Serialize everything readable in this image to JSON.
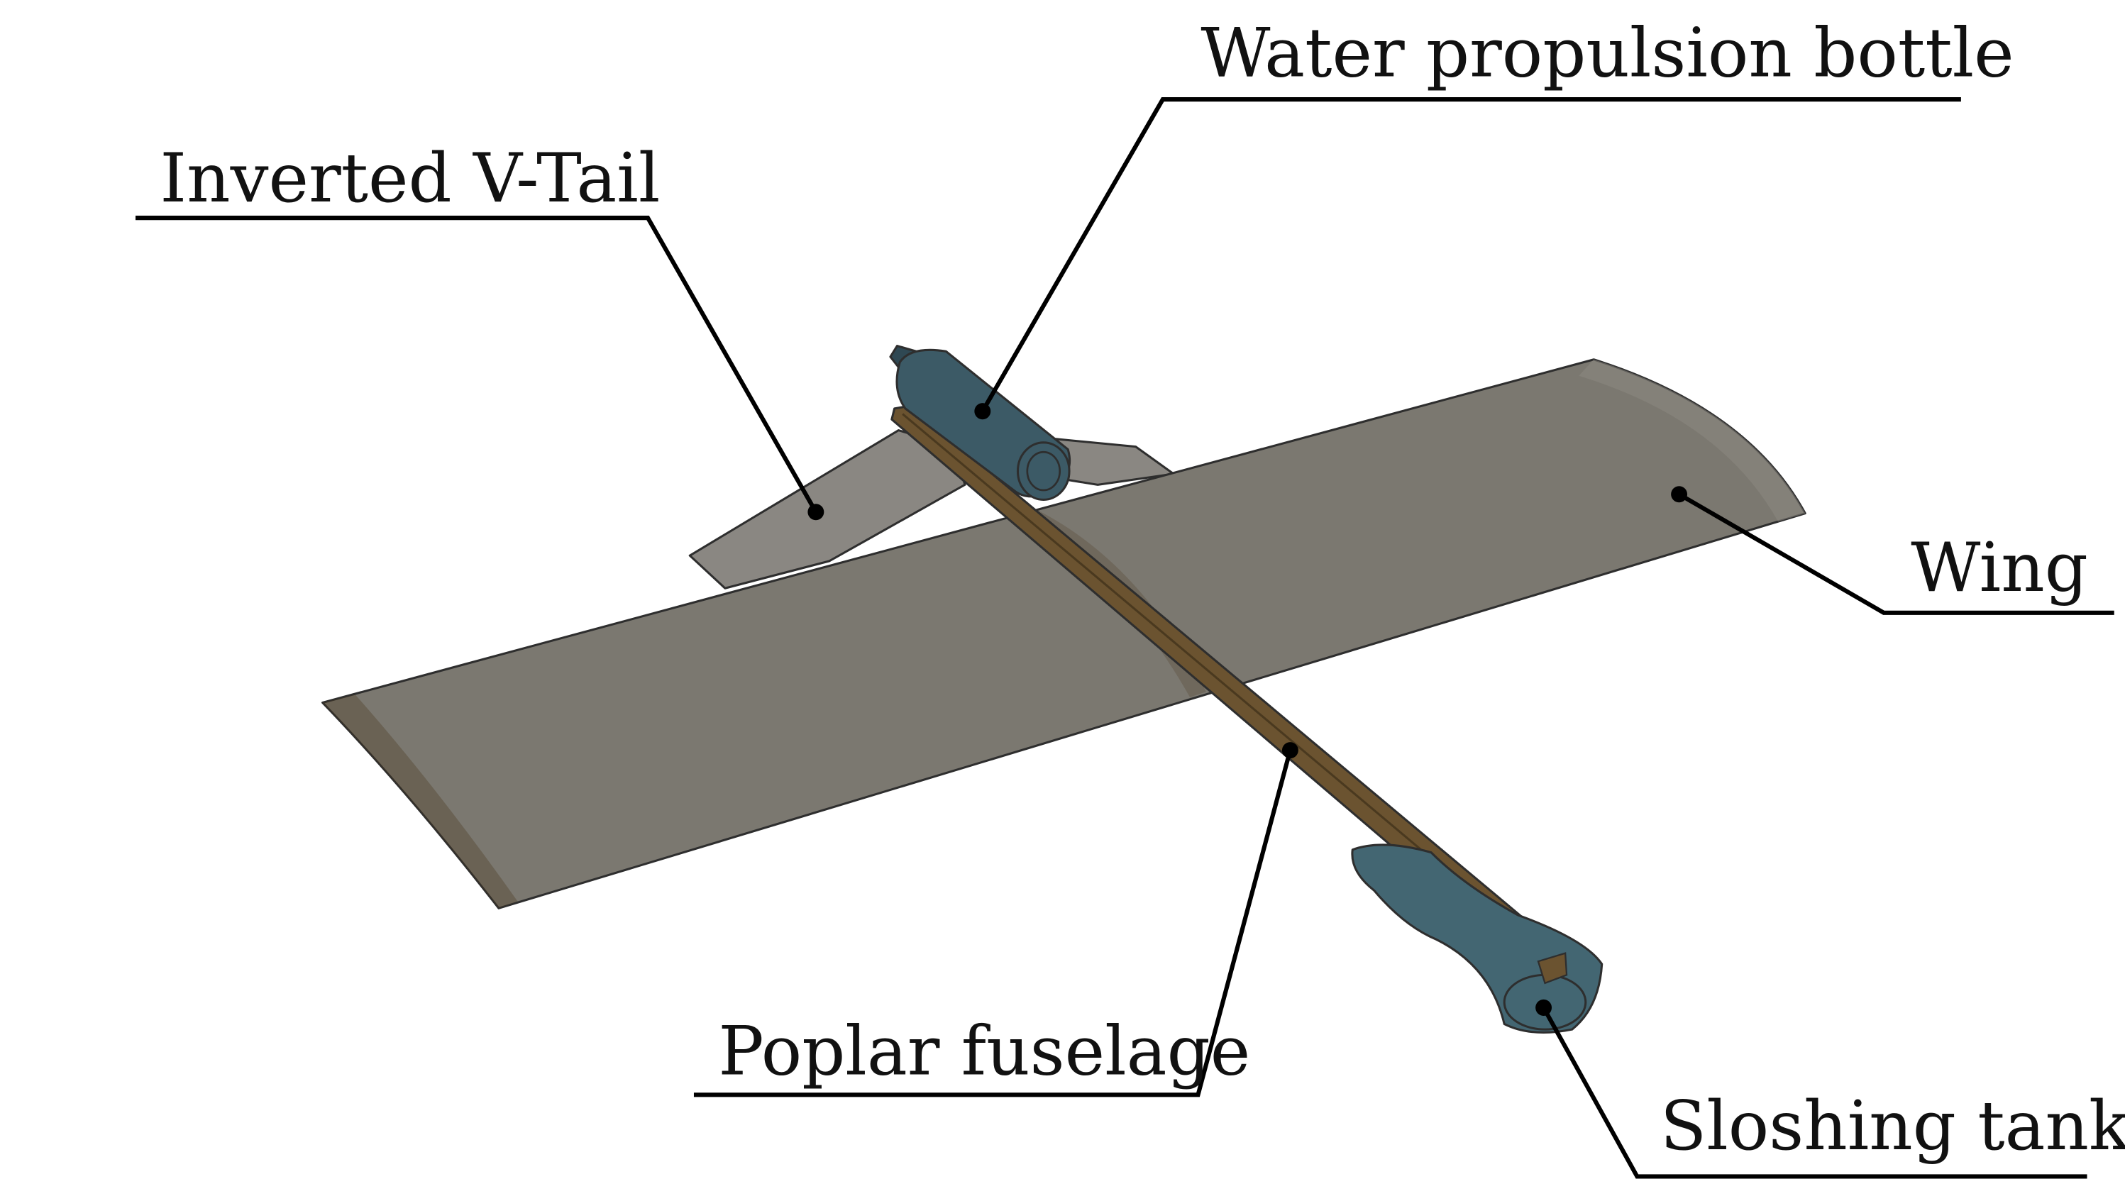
{
  "labels": {
    "water_propulsion_bottle": "Water propulsion bottle",
    "inverted_v_tail": "Inverted V-Tail",
    "wing": "Wing",
    "poplar_fuselage": "Poplar fuselage",
    "sloshing_tank": "Sloshing tank"
  },
  "colors": {
    "wing": "#7b7870",
    "wing_highlight": "#8c8981",
    "tail": "#8a8782",
    "fuselage": "#6b5330",
    "fuselage_dark": "#4a391f",
    "bottle": "#3c5a66",
    "bottle_dark": "#2f4853",
    "tank": "#436672",
    "leader": "#000000"
  }
}
